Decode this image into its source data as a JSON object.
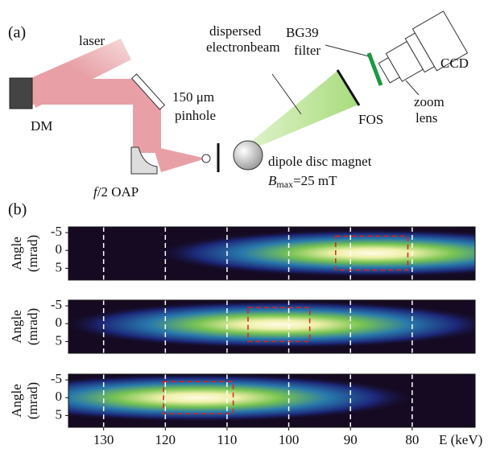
{
  "panel_a": {
    "label": "(a)",
    "laser": "laser",
    "dm": "DM",
    "pinhole": [
      "150 μm",
      "pinhole"
    ],
    "beam": [
      "dispersed",
      "electronbeam"
    ],
    "filter": [
      "BG39",
      "filter"
    ],
    "ccd": "CCD",
    "lens": [
      "zoom",
      "lens"
    ],
    "fos": "FOS",
    "magnet": "dipole disc magnet",
    "field": {
      "symbol": "B",
      "sub": "max",
      "rest": "=25 mT"
    },
    "oap": {
      "f": "f",
      "rest": "/2 OAP"
    }
  },
  "panel_b": {
    "label": "(b)",
    "x_label": "E (keV)",
    "y_label": [
      "Angle",
      "(mrad)"
    ],
    "xlim": [
      135.7,
      69.8
    ],
    "xticks": [
      130,
      120,
      110,
      100,
      90,
      80
    ],
    "ylim": [
      -6.6,
      8.3
    ],
    "yticks": [
      -5,
      0,
      5
    ],
    "panels": [
      {
        "roi_x": [
          92.4,
          80.7
        ],
        "roi_y": [
          -4,
          5.5
        ]
      },
      {
        "roi_x": [
          106.6,
          96.6
        ],
        "roi_y": [
          -4.5,
          5
        ]
      },
      {
        "roi_x": [
          120.3,
          109
        ],
        "roi_y": [
          -4.5,
          4.5
        ]
      }
    ]
  }
}
